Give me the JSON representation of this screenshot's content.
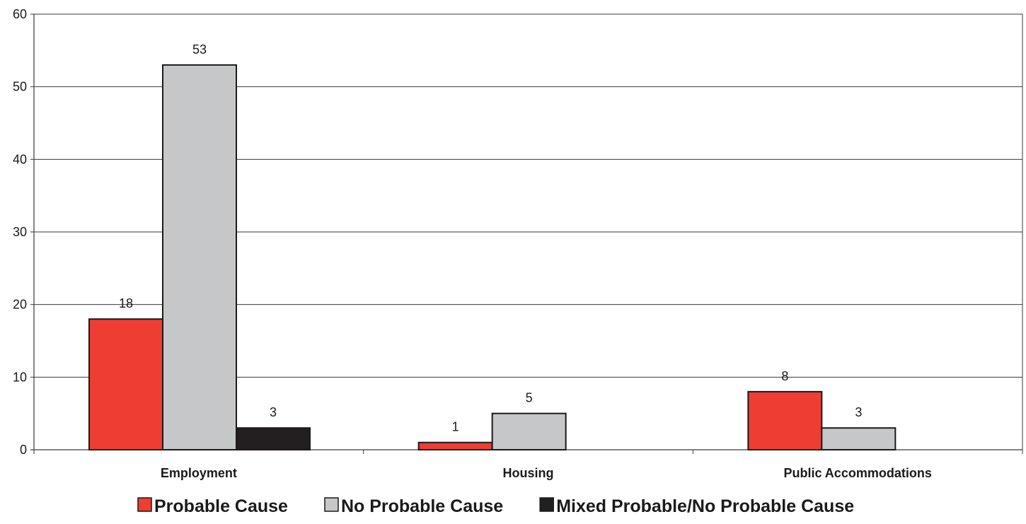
{
  "chart_data": {
    "type": "bar",
    "title": "",
    "xlabel": "",
    "ylabel": "",
    "categories": [
      "Employment",
      "Housing",
      "Public Accommodations"
    ],
    "series": [
      {
        "name": "Probable Cause",
        "color": "#ee3e33",
        "values": [
          18,
          1,
          8
        ]
      },
      {
        "name": "No Probable Cause",
        "color": "#c6c7c9",
        "values": [
          53,
          5,
          3
        ]
      },
      {
        "name": "Mixed Probable/No Probable Cause",
        "color": "#231f20",
        "values": [
          3,
          null,
          null
        ]
      }
    ],
    "ylim": [
      0,
      60
    ],
    "yticks": [
      0,
      10,
      20,
      30,
      40,
      50,
      60
    ],
    "grid": true,
    "legend_position": "bottom"
  }
}
